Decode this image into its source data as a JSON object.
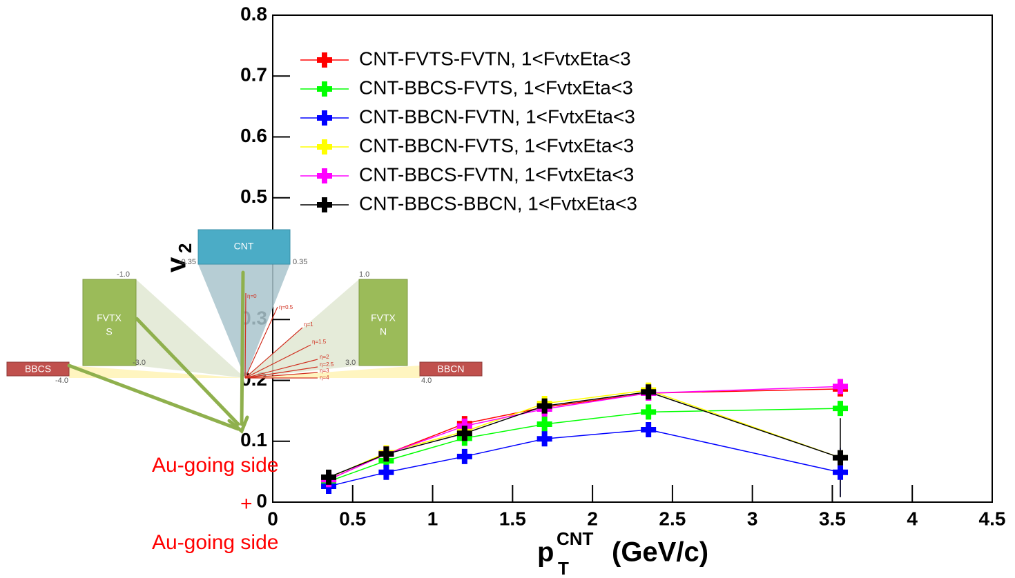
{
  "chart_data": {
    "type": "line",
    "x": [
      0.35,
      0.71,
      1.2,
      1.7,
      2.35,
      3.55
    ],
    "xlim": [
      0,
      4.5
    ],
    "xticks": [
      0,
      0.5,
      1,
      1.5,
      2,
      2.5,
      3,
      3.5,
      4,
      4.5
    ],
    "ylim": [
      0,
      0.8
    ],
    "yticks": [
      0,
      0.1,
      0.2,
      0.3,
      0.4,
      0.5,
      0.6,
      0.7,
      0.8
    ],
    "xlabel": {
      "text": "p",
      "sup": "CNT",
      "sub": "T",
      "unit": "(GeV/c)"
    },
    "ylabel": {
      "text": "v",
      "sub": "2"
    },
    "legend": "upper left",
    "series": [
      {
        "name": "CNT-FVTS-FVTN, 1<FvtxEta<3",
        "color": "#ff0000",
        "values": [
          0.037,
          0.079,
          0.129,
          0.156,
          0.179,
          0.186
        ]
      },
      {
        "name": "CNT-BBCS-FVTS, 1<FvtxEta<3",
        "color": "#00ff00",
        "values": [
          0.034,
          0.068,
          0.105,
          0.128,
          0.148,
          0.154
        ]
      },
      {
        "name": "CNT-BBCN-FVTN, 1<FvtxEta<3",
        "color": "#0000ff",
        "values": [
          0.026,
          0.049,
          0.075,
          0.104,
          0.119,
          0.049
        ],
        "errors": [
          0.004,
          0.004,
          0.004,
          0.005,
          0.006,
          0.04
        ]
      },
      {
        "name": "CNT-BBCN-FVTS, 1<FvtxEta<3",
        "color": "#ffff00",
        "values": [
          0.04,
          0.081,
          0.116,
          0.162,
          0.184,
          0.073
        ]
      },
      {
        "name": "CNT-BBCS-FVTN, 1<FvtxEta<3",
        "color": "#ff00ff",
        "values": [
          0.037,
          0.079,
          0.125,
          0.153,
          0.179,
          0.19
        ]
      },
      {
        "name": "CNT-BBCS-BBCN, 1<FvtxEta<3",
        "color": "#000000",
        "values": [
          0.041,
          0.079,
          0.113,
          0.158,
          0.181,
          0.073
        ],
        "errors": [
          0.004,
          0.004,
          0.005,
          0.006,
          0.007,
          0.065
        ]
      }
    ],
    "annotations": [
      "Au-going side",
      "+",
      "Au-going side"
    ]
  },
  "diagram": {
    "cnt": "CNT",
    "fvtx_s": [
      "FVTX",
      "S"
    ],
    "fvtx_n": [
      "FVTX",
      "N"
    ],
    "bbcs": "BBCS",
    "bbcn": "BBCN",
    "edges": [
      "-0.35",
      "0.35",
      "-1.0",
      "1.0",
      "-3.0",
      "3.0",
      "-4.0",
      "4.0"
    ],
    "eta": [
      "η=0",
      "η=0.5",
      "η=1",
      "η=1.5",
      "η=2",
      "η=2.5",
      "η=3",
      "η=4"
    ]
  }
}
